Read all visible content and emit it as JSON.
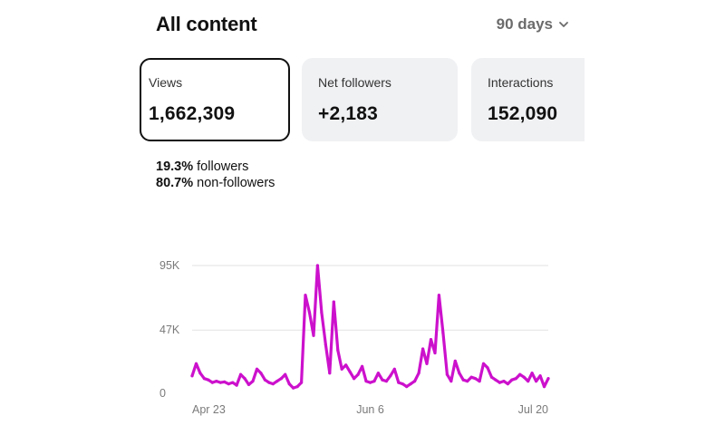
{
  "header": {
    "title": "All content",
    "range_label": "90 days",
    "range_icon": "chevron-down-icon"
  },
  "cards": [
    {
      "label": "Views",
      "value": "1,662,309",
      "selected": true
    },
    {
      "label": "Net followers",
      "value": "+2,183",
      "selected": false
    },
    {
      "label": "Interactions",
      "value": "152,090",
      "selected": false
    }
  ],
  "breakdown": [
    {
      "percent": "19.3%",
      "label": "followers"
    },
    {
      "percent": "80.7%",
      "label": "non-followers"
    }
  ],
  "colors": {
    "series": "#cc11cc",
    "gridline": "#e2e2e2",
    "selected_border": "#111111",
    "card_bg": "#f0f1f3"
  },
  "chart_data": {
    "type": "line",
    "title": "",
    "xlabel": "",
    "ylabel": "",
    "ylim": [
      0,
      95000
    ],
    "y_ticks": [
      {
        "value": 95000,
        "label": "95K"
      },
      {
        "value": 47000,
        "label": "47K"
      },
      {
        "value": 0,
        "label": "0"
      }
    ],
    "x_tick_labels": [
      {
        "index": 0,
        "label": "Apr 23"
      },
      {
        "index": 44,
        "label": "Jun 6"
      },
      {
        "index": 88,
        "label": "Jul 20"
      }
    ],
    "grid": true,
    "legend": "none",
    "series": [
      {
        "values": [
          13000,
          22000,
          15000,
          11000,
          10000,
          8000,
          9000,
          8000,
          8500,
          7000,
          8000,
          6000,
          14000,
          11000,
          6500,
          9000,
          18000,
          15000,
          10000,
          8000,
          7000,
          9000,
          11000,
          14000,
          7000,
          4000,
          5000,
          8000,
          73000,
          60000,
          43000,
          95000,
          60000,
          36000,
          15000,
          68000,
          32000,
          18000,
          21000,
          16000,
          11000,
          14000,
          20000,
          9000,
          8000,
          9000,
          15000,
          10000,
          9000,
          13000,
          18000,
          8000,
          7000,
          5000,
          7000,
          9000,
          15000,
          33000,
          22000,
          40000,
          30000,
          73000,
          45000,
          14000,
          9000,
          24000,
          15000,
          10000,
          9000,
          12000,
          11000,
          9000,
          22000,
          19000,
          12000,
          10000,
          8000,
          9000,
          7000,
          10000,
          11000,
          14000,
          12000,
          9000,
          15000,
          9000,
          13000,
          5000,
          11000
        ]
      }
    ]
  }
}
